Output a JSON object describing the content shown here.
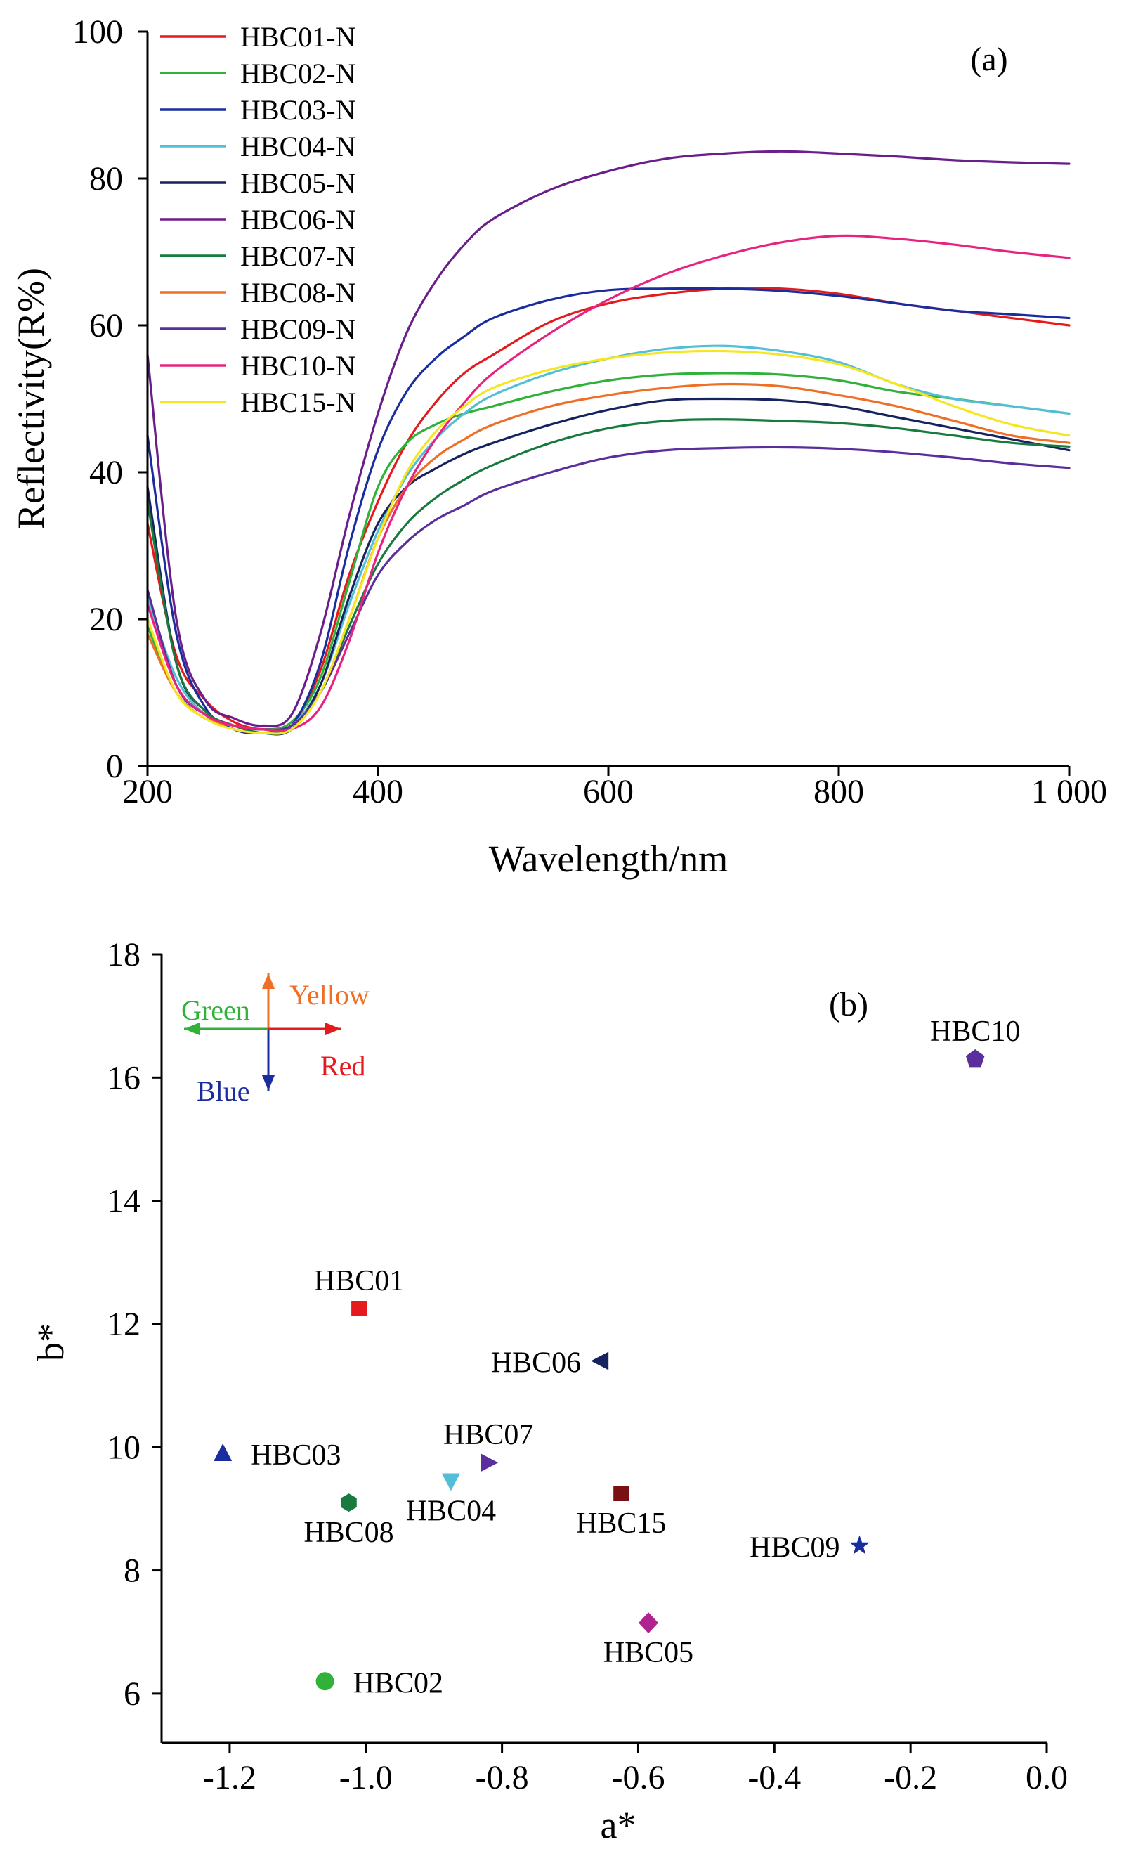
{
  "chart_data": [
    {
      "type": "line",
      "panel_label": "(a)",
      "xlabel": "Wavelength/nm",
      "ylabel": "Reflectivity(R%)",
      "xlim": [
        200,
        1000
      ],
      "ylim": [
        0,
        100
      ],
      "x_ticks": [
        200,
        400,
        600,
        800,
        1000
      ],
      "x_tick_labels": [
        "200",
        "400",
        "600",
        "800",
        "1 000"
      ],
      "y_ticks": [
        0,
        20,
        40,
        60,
        80,
        100
      ],
      "y_tick_labels": [
        "0",
        "20",
        "40",
        "60",
        "80",
        "100"
      ],
      "legend_position": "top-left",
      "grid": false,
      "x": [
        200,
        225,
        250,
        275,
        300,
        325,
        350,
        375,
        400,
        425,
        450,
        475,
        500,
        550,
        600,
        650,
        700,
        750,
        800,
        850,
        900,
        950,
        1000
      ],
      "series": [
        {
          "name": "HBC01-N",
          "color": "#e41a1c",
          "values": [
            33,
            15,
            9,
            6,
            5,
            5.5,
            13,
            26,
            36,
            44,
            49.5,
            53.5,
            56,
            60.5,
            63,
            64.3,
            65,
            65,
            64.3,
            63,
            62,
            61,
            60
          ]
        },
        {
          "name": "HBC02-N",
          "color": "#2fb13a",
          "values": [
            19,
            10,
            6.5,
            5.5,
            5,
            6,
            12,
            25,
            38,
            44,
            46.5,
            48,
            49,
            51,
            52.5,
            53.3,
            53.5,
            53.3,
            52.5,
            51,
            50,
            49,
            48
          ]
        },
        {
          "name": "HBC03-N",
          "color": "#1a2d9e",
          "values": [
            45,
            18,
            8,
            5,
            4.5,
            5.5,
            14,
            30,
            43,
            51,
            55.5,
            58.5,
            61,
            63.5,
            64.8,
            65,
            65,
            64.7,
            64,
            63,
            62,
            61.5,
            61
          ]
        },
        {
          "name": "HBC04-N",
          "color": "#53bfd6",
          "values": [
            23,
            12,
            7,
            5.5,
            5,
            5.5,
            11,
            22,
            32,
            39.5,
            44.5,
            48,
            50.5,
            53.5,
            55.5,
            56.8,
            57.2,
            56.5,
            55,
            52,
            50,
            49,
            48
          ]
        },
        {
          "name": "HBC05-N",
          "color": "#16235f",
          "values": [
            38,
            14,
            7.5,
            5.5,
            4.5,
            5,
            11,
            23,
            33,
            38,
            40.5,
            42.5,
            44,
            46.5,
            48.5,
            49.8,
            50,
            49.8,
            49,
            47.5,
            46,
            44.5,
            43
          ]
        },
        {
          "name": "HBC06-N",
          "color": "#6a1e8a",
          "values": [
            56,
            20,
            9,
            6.5,
            5.5,
            7,
            18,
            34,
            48,
            59,
            66,
            71,
            74.5,
            78.5,
            81,
            82.7,
            83.4,
            83.7,
            83.4,
            83,
            82.5,
            82.2,
            82
          ]
        },
        {
          "name": "HBC07-N",
          "color": "#187a3e",
          "values": [
            36,
            14,
            7.5,
            5.5,
            4.5,
            5,
            10,
            19,
            27.5,
            33,
            36.5,
            39,
            41,
            44,
            46,
            47,
            47.2,
            47,
            46.7,
            46,
            45,
            44,
            43.5
          ]
        },
        {
          "name": "HBC08-N",
          "color": "#ef6f26",
          "values": [
            18,
            10,
            6.5,
            5.5,
            5,
            5.5,
            10,
            20,
            31,
            38,
            42,
            44.5,
            46.5,
            49,
            50.5,
            51.5,
            52,
            51.7,
            50.5,
            49,
            47,
            45,
            44
          ]
        },
        {
          "name": "HBC09-N",
          "color": "#5a2e9c",
          "values": [
            24,
            11,
            7,
            5.5,
            5,
            5.5,
            10,
            18,
            26,
            30.5,
            33.5,
            35.5,
            37.5,
            40,
            42,
            43,
            43.3,
            43.4,
            43.2,
            42.7,
            42,
            41.2,
            40.6
          ]
        },
        {
          "name": "HBC10-N",
          "color": "#e8237f",
          "values": [
            22,
            11,
            7,
            5.5,
            5,
            5,
            8,
            17,
            29,
            38,
            44.5,
            49.5,
            53.5,
            59,
            63.5,
            67,
            69.5,
            71.3,
            72.2,
            71.8,
            71,
            70,
            69.2
          ]
        },
        {
          "name": "HBC15-N",
          "color": "#f5e61d",
          "values": [
            20,
            10,
            6.5,
            5,
            4.5,
            5,
            10,
            20,
            31,
            40,
            45.5,
            49,
            51.5,
            54,
            55.5,
            56.3,
            56.5,
            56,
            54.7,
            52,
            49,
            46.5,
            45
          ]
        }
      ]
    },
    {
      "type": "scatter",
      "panel_label": "(b)",
      "xlabel": "a*",
      "ylabel": "b*",
      "xlim": [
        -1.3,
        0.0
      ],
      "ylim": [
        5.2,
        18
      ],
      "x_ticks": [
        -1.2,
        -1.0,
        -0.8,
        -0.6,
        -0.4,
        -0.2,
        0.0
      ],
      "x_tick_labels": [
        "-1.2",
        "-1.0",
        "-0.8",
        "-0.6",
        "-0.4",
        "-0.2",
        "0.0"
      ],
      "y_ticks": [
        6,
        8,
        10,
        12,
        14,
        16,
        18
      ],
      "y_tick_labels": [
        "6",
        "8",
        "10",
        "12",
        "14",
        "16",
        "18"
      ],
      "grid": false,
      "direction_labels": {
        "yellow": "Yellow",
        "green": "Green",
        "red": "Red",
        "blue": "Blue"
      },
      "direction_colors": {
        "yellow": "#ef6f26",
        "green": "#2fb13a",
        "red": "#e41a1c",
        "blue": "#1a2d9e"
      },
      "points": [
        {
          "label": "HBC01",
          "a": -1.01,
          "b": 12.25,
          "marker": "square",
          "color": "#e41a1c",
          "label_pos": "above"
        },
        {
          "label": "HBC02",
          "a": -1.06,
          "b": 6.2,
          "marker": "circle",
          "color": "#2fb13a",
          "label_pos": "right"
        },
        {
          "label": "HBC03",
          "a": -1.21,
          "b": 9.9,
          "marker": "triangle-up",
          "color": "#1a2d9e",
          "label_pos": "right"
        },
        {
          "label": "HBC04",
          "a": -0.875,
          "b": 9.45,
          "marker": "triangle-down",
          "color": "#53bfd6",
          "label_pos": "below"
        },
        {
          "label": "HBC05",
          "a": -0.585,
          "b": 7.15,
          "marker": "diamond",
          "color": "#b0228f",
          "label_pos": "below"
        },
        {
          "label": "HBC06",
          "a": -0.655,
          "b": 11.4,
          "marker": "triangle-left",
          "color": "#16235f",
          "label_pos": "left"
        },
        {
          "label": "HBC07",
          "a": -0.82,
          "b": 9.75,
          "marker": "triangle-right",
          "color": "#5a2e9c",
          "label_pos": "above"
        },
        {
          "label": "HBC08",
          "a": -1.025,
          "b": 9.1,
          "marker": "hexagon",
          "color": "#187a3e",
          "label_pos": "below"
        },
        {
          "label": "HBC09",
          "a": -0.275,
          "b": 8.4,
          "marker": "star",
          "color": "#1a2d9e",
          "label_pos": "left"
        },
        {
          "label": "HBC10",
          "a": -0.105,
          "b": 16.3,
          "marker": "pentagon",
          "color": "#5a2e9c",
          "label_pos": "above"
        },
        {
          "label": "HBC15",
          "a": -0.625,
          "b": 9.25,
          "marker": "square",
          "color": "#7a0f14",
          "label_pos": "below"
        }
      ]
    }
  ]
}
